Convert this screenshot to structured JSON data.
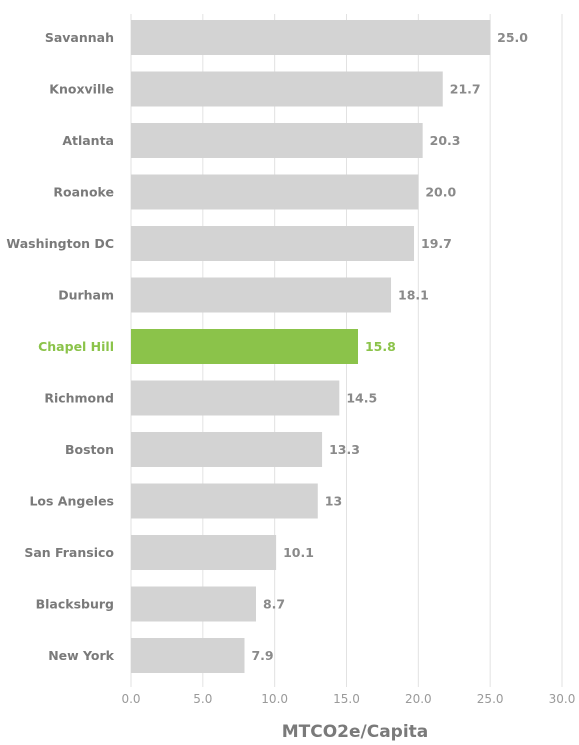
{
  "chart_data": {
    "type": "bar",
    "orientation": "horizontal",
    "categories": [
      "Savannah",
      "Knoxville",
      "Atlanta",
      "Roanoke",
      "Washington DC",
      "Durham",
      "Chapel Hill",
      "Richmond",
      "Boston",
      "Los Angeles",
      "San Fransico",
      "Blacksburg",
      "New York"
    ],
    "values": [
      25.0,
      21.7,
      20.3,
      20.0,
      19.7,
      18.1,
      15.8,
      14.5,
      13.3,
      13,
      10.1,
      8.7,
      7.9
    ],
    "value_labels": [
      "25.0",
      "21.7",
      "20.3",
      "20.0",
      "19.7",
      "18.1",
      "15.8",
      "14.5",
      "13.3",
      "13",
      "10.1",
      "8.7",
      "7.9"
    ],
    "highlight": "Chapel Hill",
    "xlabel": "MTCO2e/Capita",
    "ylabel": "",
    "xlim": [
      0,
      30
    ],
    "x_ticks": [
      "0.0",
      "5.0",
      "10.0",
      "15.0",
      "20.0",
      "25.0",
      "30.0"
    ],
    "grid": "vertical",
    "colors": {
      "bar": "#d3d3d3",
      "highlight_bar": "#8bc34a",
      "highlight_text": "#8bc34a",
      "label_text": "#7a7a7a",
      "grid": "#e2e2e2"
    }
  }
}
